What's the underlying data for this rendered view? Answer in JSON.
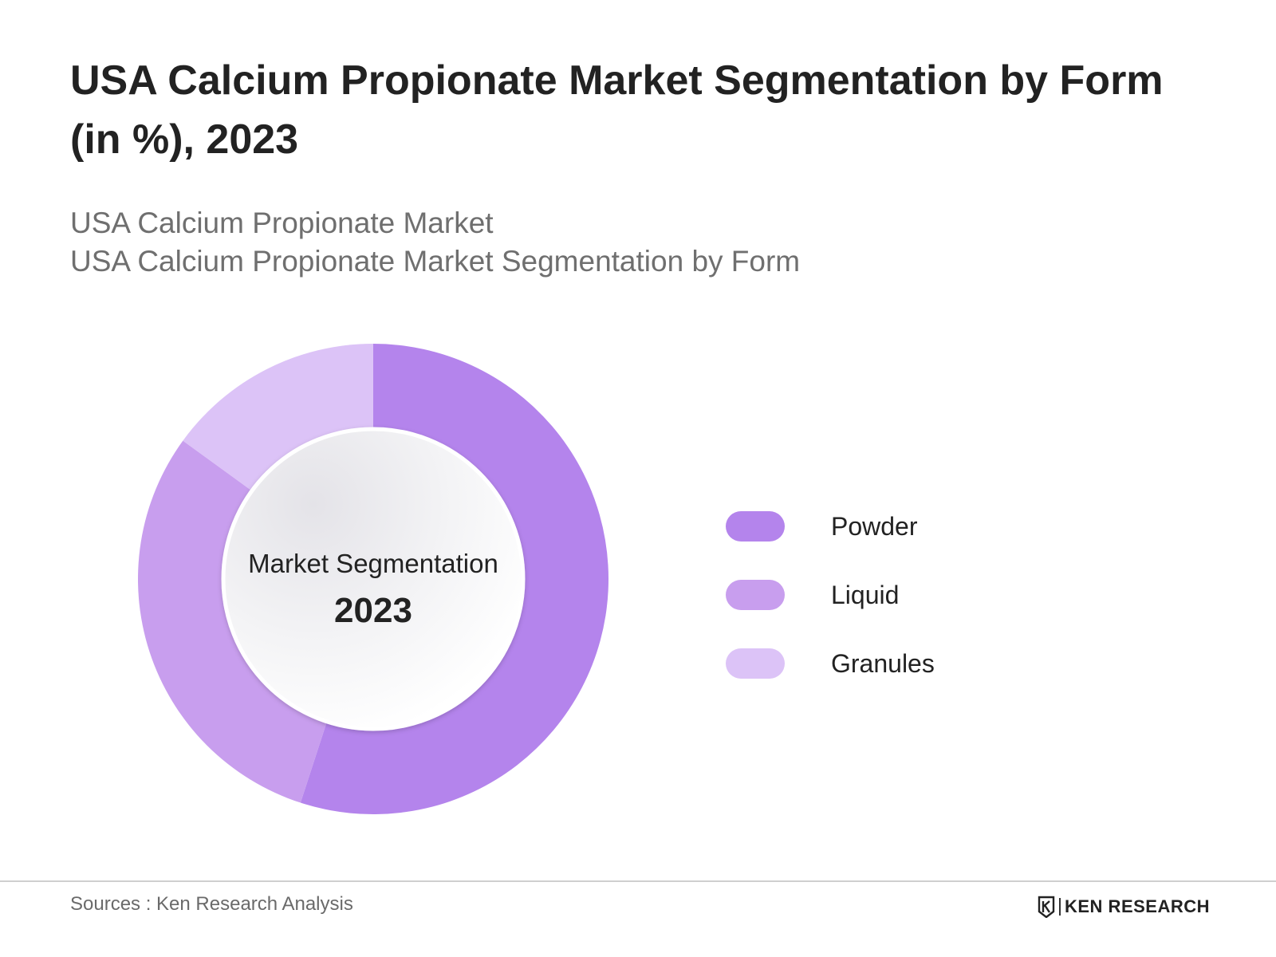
{
  "header": {
    "title": "USA Calcium Propionate Market Segmentation by Form (in %), 2023",
    "subtitle_line1": "USA Calcium Propionate Market",
    "subtitle_line2": "USA Calcium Propionate Market Segmentation by Form"
  },
  "chart_data": {
    "type": "pie",
    "donut": true,
    "center_label": "Market Segmentation",
    "center_year": "2023",
    "categories": [
      "Powder",
      "Liquid",
      "Granules"
    ],
    "values": [
      55,
      30,
      15
    ],
    "colors": [
      "#b484ec",
      "#c89eee",
      "#dcc3f7"
    ],
    "start_angle_deg": 0,
    "direction": "clockwise",
    "legend_position": "right"
  },
  "footer": {
    "source": "Sources : Ken Research Analysis",
    "brand": "KEN RESEARCH"
  },
  "icons": {
    "logo": "ken-research-logo-icon"
  }
}
